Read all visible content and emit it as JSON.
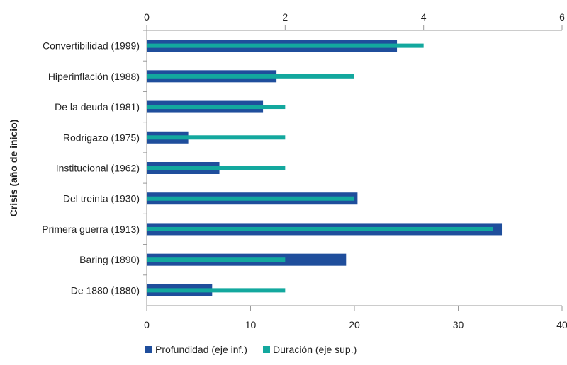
{
  "chart_data": {
    "type": "bar",
    "orientation": "horizontal",
    "ylabel": "Crisis (año de inicio)",
    "categories": [
      "Convertibilidad (1999)",
      "Hiperinflación (1988)",
      "De la deuda (1981)",
      "Rodrigazo (1975)",
      "Institucional (1962)",
      "Del treinta (1930)",
      "Primera guerra (1913)",
      "Baring (1890)",
      "De 1880 (1880)"
    ],
    "bottom_axis": {
      "ticks": [
        0,
        10,
        20,
        30,
        40
      ],
      "range": [
        0,
        40
      ]
    },
    "top_axis": {
      "ticks": [
        0,
        2,
        4,
        6
      ],
      "range": [
        0,
        6
      ]
    },
    "series": [
      {
        "name": "Profundidad (eje inf.)",
        "axis": "bottom",
        "color": "#1f4e9c",
        "values": [
          24.1,
          12.5,
          11.2,
          4.0,
          7.0,
          20.3,
          34.2,
          19.2,
          6.3
        ]
      },
      {
        "name": "Duración (eje sup.)",
        "axis": "top",
        "color": "#13a89e",
        "values": [
          4.0,
          3.0,
          2.0,
          2.0,
          2.0,
          3.0,
          5.0,
          2.0,
          2.0
        ]
      }
    ],
    "legend_position": "bottom-left",
    "grid": false
  }
}
